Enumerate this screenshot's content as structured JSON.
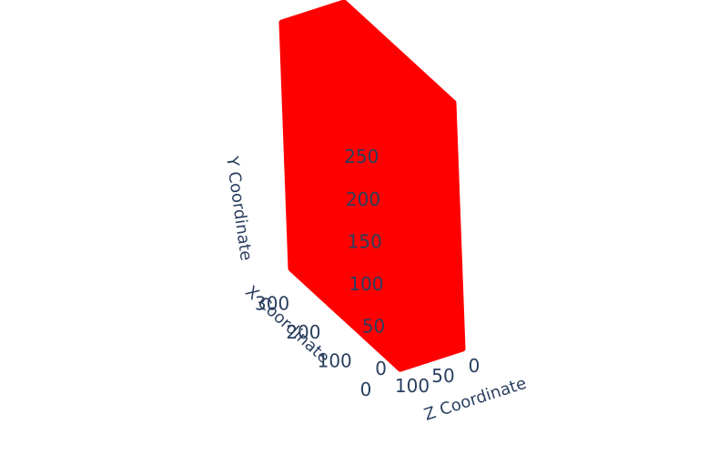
{
  "chart_data": {
    "type": "scatter3d",
    "title": "",
    "marker_color": "#ff0000",
    "pane_color": "#e5ecf6",
    "text_color": "#2a3f5f",
    "x_axis": {
      "title": "X Coordinate",
      "range": [
        0,
        350
      ],
      "tick_values": [
        0,
        100,
        200,
        300
      ],
      "tick_labels": [
        "0",
        "100",
        "200",
        "300"
      ]
    },
    "y_axis": {
      "title": "Y Coordinate",
      "range": [
        0,
        290
      ],
      "tick_values": [
        0,
        50,
        100,
        150,
        200,
        250
      ],
      "tick_labels": [
        "0",
        "50",
        "100",
        "150",
        "200",
        "250"
      ]
    },
    "z_axis": {
      "title": "Z Coordinate",
      "range": [
        0,
        100
      ],
      "tick_values": [
        0,
        50,
        100
      ],
      "tick_labels": [
        "0",
        "50",
        "100"
      ]
    },
    "point_cloud": {
      "description_shape": "dense rectangular volume of points",
      "x_extent": [
        0,
        350
      ],
      "y_extent": [
        0,
        290
      ],
      "z_extent": [
        0,
        100
      ]
    }
  }
}
